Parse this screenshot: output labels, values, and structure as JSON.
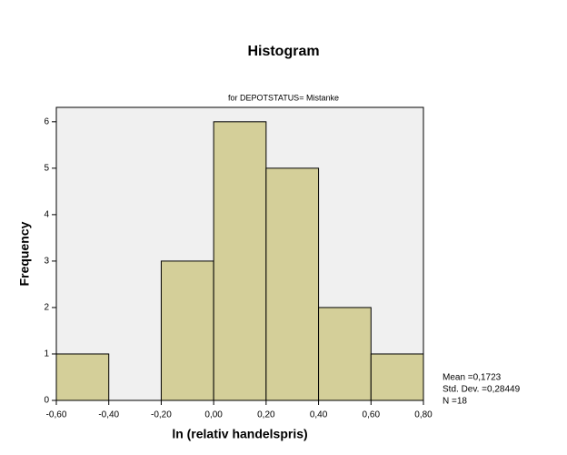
{
  "chart_data": {
    "type": "histogram",
    "title": "Histogram",
    "subtitle": "for DEPOTSTATUS= Mistanke",
    "x_label": "ln (relativ handelspris)",
    "y_label": "Frequency",
    "bins": [
      -0.6,
      -0.4,
      -0.2,
      0,
      0.2,
      0.4,
      0.6,
      0.8
    ],
    "values": [
      1,
      0,
      3,
      6,
      5,
      2,
      1
    ],
    "color": "#d4cf99",
    "xlim": [
      -0.6,
      0.8
    ],
    "xticks": [
      {
        "value": -0.6,
        "label": "-0,60"
      },
      {
        "value": -0.4,
        "label": "-0,40"
      },
      {
        "value": -0.2,
        "label": "-0,20"
      },
      {
        "value": 0,
        "label": "0,00"
      },
      {
        "value": 0.2,
        "label": "0,20"
      },
      {
        "value": 0.4,
        "label": "0,40"
      },
      {
        "value": 0.6,
        "label": "0,60"
      },
      {
        "value": 0.8,
        "label": "0,80"
      }
    ],
    "ylim": [
      0,
      6.31
    ],
    "yticks": [
      0,
      1,
      2,
      3,
      4,
      5,
      6
    ],
    "annotations": [
      "Mean =0,1723",
      "Std. Dev. =0,28449",
      "N =18"
    ]
  }
}
